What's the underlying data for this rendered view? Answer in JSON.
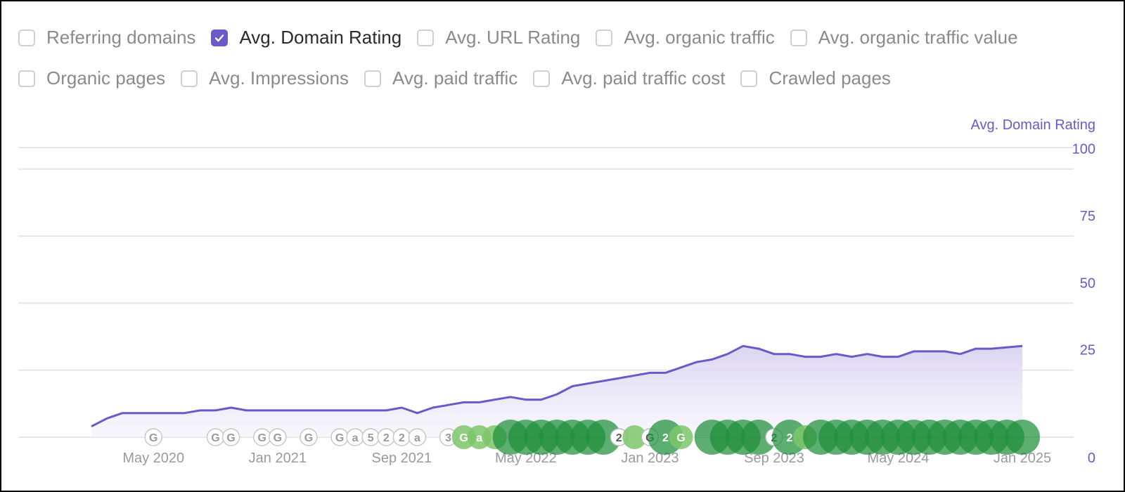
{
  "metrics": [
    [
      {
        "label": "Referring domains",
        "checked": false
      },
      {
        "label": "Avg. Domain Rating",
        "checked": true
      },
      {
        "label": "Avg. URL Rating",
        "checked": false
      },
      {
        "label": "Avg. organic traffic",
        "checked": false
      },
      {
        "label": "Avg. organic traffic value",
        "checked": false
      }
    ],
    [
      {
        "label": "Organic pages",
        "checked": false
      },
      {
        "label": "Avg. Impressions",
        "checked": false
      },
      {
        "label": "Avg. paid traffic",
        "checked": false
      },
      {
        "label": "Avg. paid traffic cost",
        "checked": false
      },
      {
        "label": "Crawled pages",
        "checked": false
      }
    ]
  ],
  "colors": {
    "accent": "#6a5ac9",
    "area_fill": "#e4e0f4",
    "grid": "#e6e6ea",
    "tick_text": "#6a5ac9",
    "date_text": "#9a9aa0",
    "marker_outline": "#c8c8c8",
    "marker_light_green": "#7cc56a",
    "marker_dark_green": "#1f8f3a"
  },
  "chart_data": {
    "type": "area",
    "axis_title": "Avg. Domain Rating",
    "ylim": [
      0,
      100
    ],
    "y_ticks": [
      100,
      75,
      50,
      25,
      0
    ],
    "x_ticks": [
      "May 2020",
      "Jan 2021",
      "Sep 2021",
      "May 2022",
      "Jan 2023",
      "Sep 2023",
      "May 2024",
      "Jan 2025"
    ],
    "x_start": "2020-01",
    "x_end": "2025-01",
    "grid": true,
    "series": [
      {
        "values": [
          {
            "x": "2020-01",
            "y": 4
          },
          {
            "x": "2020-02",
            "y": 7
          },
          {
            "x": "2020-03",
            "y": 9
          },
          {
            "x": "2020-05",
            "y": 9
          },
          {
            "x": "2020-07",
            "y": 9
          },
          {
            "x": "2020-08",
            "y": 10
          },
          {
            "x": "2020-09",
            "y": 10
          },
          {
            "x": "2020-10",
            "y": 11
          },
          {
            "x": "2020-11",
            "y": 10
          },
          {
            "x": "2021-01",
            "y": 10
          },
          {
            "x": "2021-04",
            "y": 10
          },
          {
            "x": "2021-08",
            "y": 10
          },
          {
            "x": "2021-09",
            "y": 11
          },
          {
            "x": "2021-10",
            "y": 9
          },
          {
            "x": "2021-11",
            "y": 11
          },
          {
            "x": "2022-01",
            "y": 13
          },
          {
            "x": "2022-02",
            "y": 13
          },
          {
            "x": "2022-04",
            "y": 15
          },
          {
            "x": "2022-05",
            "y": 14
          },
          {
            "x": "2022-06",
            "y": 14
          },
          {
            "x": "2022-07",
            "y": 16
          },
          {
            "x": "2022-08",
            "y": 19
          },
          {
            "x": "2022-09",
            "y": 20
          },
          {
            "x": "2022-11",
            "y": 22
          },
          {
            "x": "2022-12",
            "y": 23
          },
          {
            "x": "2023-01",
            "y": 24
          },
          {
            "x": "2023-02",
            "y": 24
          },
          {
            "x": "2023-03",
            "y": 26
          },
          {
            "x": "2023-04",
            "y": 28
          },
          {
            "x": "2023-05",
            "y": 29
          },
          {
            "x": "2023-06",
            "y": 31
          },
          {
            "x": "2023-07",
            "y": 34
          },
          {
            "x": "2023-08",
            "y": 33
          },
          {
            "x": "2023-09",
            "y": 31
          },
          {
            "x": "2023-10",
            "y": 31
          },
          {
            "x": "2023-11",
            "y": 30
          },
          {
            "x": "2023-12",
            "y": 30
          },
          {
            "x": "2024-01",
            "y": 31
          },
          {
            "x": "2024-02",
            "y": 30
          },
          {
            "x": "2024-03",
            "y": 31
          },
          {
            "x": "2024-04",
            "y": 30
          },
          {
            "x": "2024-05",
            "y": 30
          },
          {
            "x": "2024-06",
            "y": 32
          },
          {
            "x": "2024-07",
            "y": 32
          },
          {
            "x": "2024-08",
            "y": 32
          },
          {
            "x": "2024-09",
            "y": 31
          },
          {
            "x": "2024-10",
            "y": 33
          },
          {
            "x": "2024-11",
            "y": 33
          },
          {
            "x": "2025-01",
            "y": 34
          }
        ]
      }
    ],
    "annotations": [
      {
        "x": "2020-05",
        "label": "G",
        "style": "outline"
      },
      {
        "x": "2020-09",
        "label": "G",
        "style": "outline"
      },
      {
        "x": "2020-10",
        "label": "G",
        "style": "outline"
      },
      {
        "x": "2020-12",
        "label": "G",
        "style": "outline"
      },
      {
        "x": "2021-01",
        "label": "G",
        "style": "outline"
      },
      {
        "x": "2021-03",
        "label": "G",
        "style": "outline"
      },
      {
        "x": "2021-05",
        "label": "G",
        "style": "outline"
      },
      {
        "x": "2021-06",
        "label": "a",
        "style": "outline"
      },
      {
        "x": "2021-07",
        "label": "5",
        "style": "outline"
      },
      {
        "x": "2021-08",
        "label": "2",
        "style": "outline"
      },
      {
        "x": "2021-09",
        "label": "2",
        "style": "outline"
      },
      {
        "x": "2021-10",
        "label": "a",
        "style": "outline"
      },
      {
        "x": "2021-12",
        "label": "3",
        "style": "outline"
      },
      {
        "x": "2022-01",
        "label": "G",
        "style": "light"
      },
      {
        "x": "2022-02",
        "label": "a",
        "style": "light"
      },
      {
        "x": "2022-03",
        "label": "",
        "style": "light"
      },
      {
        "x": "2022-04",
        "label": "",
        "style": "dark"
      },
      {
        "x": "2022-05",
        "label": "",
        "style": "dark"
      },
      {
        "x": "2022-06",
        "label": "",
        "style": "dark"
      },
      {
        "x": "2022-07",
        "label": "",
        "style": "dark"
      },
      {
        "x": "2022-08",
        "label": "",
        "style": "dark"
      },
      {
        "x": "2022-09",
        "label": "",
        "style": "dark"
      },
      {
        "x": "2022-10",
        "label": "",
        "style": "dark"
      },
      {
        "x": "2022-11",
        "label": "2",
        "style": "white"
      },
      {
        "x": "2022-12",
        "label": "",
        "style": "light"
      },
      {
        "x": "2023-01",
        "label": "G",
        "style": "white"
      },
      {
        "x": "2023-02",
        "label": "2",
        "style": "dark"
      },
      {
        "x": "2023-03",
        "label": "G",
        "style": "light"
      },
      {
        "x": "2023-05",
        "label": "",
        "style": "dark"
      },
      {
        "x": "2023-06",
        "label": "",
        "style": "dark"
      },
      {
        "x": "2023-07",
        "label": "",
        "style": "dark"
      },
      {
        "x": "2023-08",
        "label": "",
        "style": "dark"
      },
      {
        "x": "2023-09",
        "label": "2",
        "style": "white"
      },
      {
        "x": "2023-10",
        "label": "2",
        "style": "dark"
      },
      {
        "x": "2023-11",
        "label": "",
        "style": "light"
      },
      {
        "x": "2023-12",
        "label": "",
        "style": "dark"
      },
      {
        "x": "2024-01",
        "label": "",
        "style": "dark"
      },
      {
        "x": "2024-02",
        "label": "",
        "style": "dark"
      },
      {
        "x": "2024-03",
        "label": "",
        "style": "dark"
      },
      {
        "x": "2024-04",
        "label": "",
        "style": "dark"
      },
      {
        "x": "2024-05",
        "label": "",
        "style": "dark"
      },
      {
        "x": "2024-06",
        "label": "",
        "style": "dark"
      },
      {
        "x": "2024-07",
        "label": "",
        "style": "dark"
      },
      {
        "x": "2024-08",
        "label": "",
        "style": "dark"
      },
      {
        "x": "2024-09",
        "label": "",
        "style": "dark"
      },
      {
        "x": "2024-10",
        "label": "",
        "style": "dark"
      },
      {
        "x": "2024-11",
        "label": "",
        "style": "dark"
      },
      {
        "x": "2024-12",
        "label": "",
        "style": "dark"
      },
      {
        "x": "2025-01",
        "label": "",
        "style": "dark"
      }
    ]
  }
}
